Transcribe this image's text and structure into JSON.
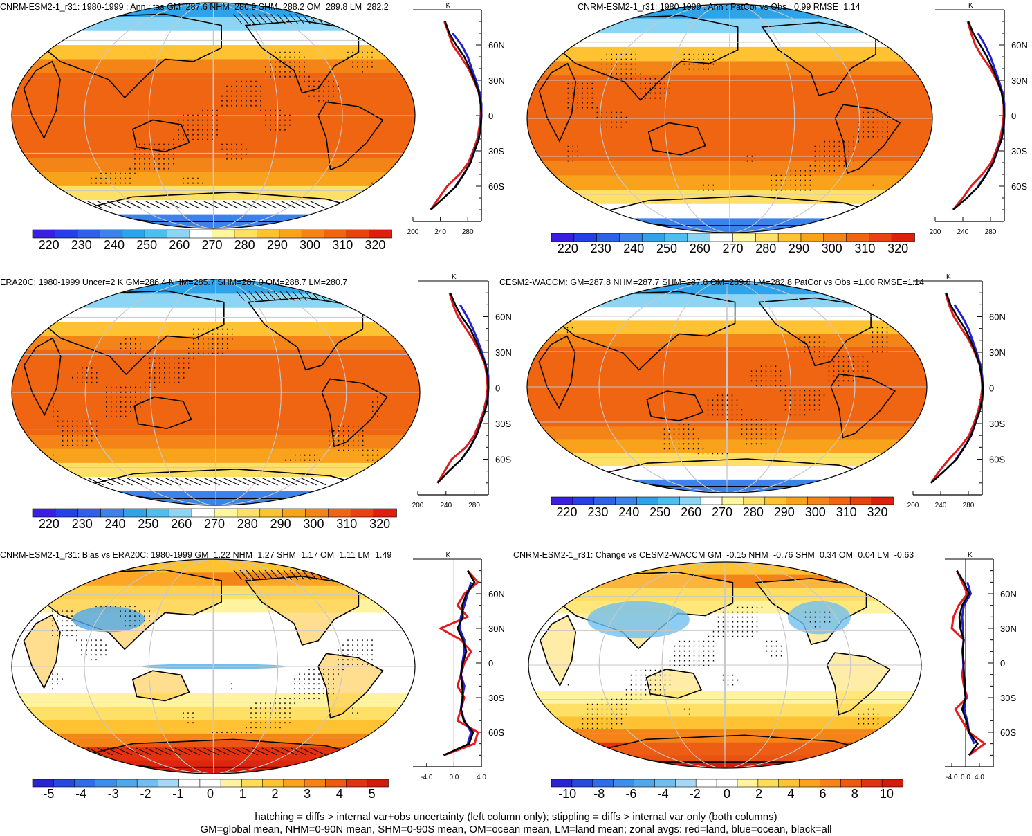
{
  "footer": {
    "line1": "hatching = diffs > internal var+obs uncertainty (left column only); stippling = diffs > internal var only (both columns)",
    "line2": "GM=global mean, NHM=0-90N mean, SHM=0-90S mean, OM=ocean mean, LM=land mean; zonal avgs: red=land, blue=ocean, black=all"
  },
  "chart_data": [
    {
      "type": "heatmap",
      "title": "CNRM-ESM2-1_r31: 1980-1999 : Ann : tas GM=287.6 NHM=286.9 SHM=288.2 OM=289.8 LM=282.2",
      "palette": "temperature",
      "colorbar": {
        "labels": [
          "220",
          "230",
          "240",
          "250",
          "260",
          "270",
          "280",
          "290",
          "300",
          "310",
          "320"
        ],
        "min": 215,
        "max": 325
      },
      "zonal": {
        "unit": "K",
        "xticks": [
          "200",
          "240",
          "280"
        ],
        "xlim": [
          200,
          300
        ],
        "yticks": [
          "60N",
          "30N",
          "0",
          "30S",
          "60S"
        ],
        "lat": [
          -80,
          -70,
          -60,
          -50,
          -40,
          -30,
          -20,
          -10,
          0,
          10,
          20,
          30,
          40,
          50,
          60,
          70,
          80
        ],
        "land": [
          226,
          238,
          250,
          268,
          281,
          288,
          294,
          297,
          299,
          299,
          296,
          289,
          281,
          270,
          258,
          252,
          246
        ],
        "ocean": [
          null,
          null,
          262,
          274,
          284,
          290,
          296,
          299,
          300,
          300,
          297,
          292,
          286,
          280,
          271,
          258,
          null
        ],
        "all": [
          226,
          245,
          263,
          274,
          284,
          290,
          296,
          299,
          300,
          299,
          296,
          290,
          283,
          275,
          263,
          253,
          247
        ]
      }
    },
    {
      "type": "heatmap",
      "title": "CNRM-ESM2-1_r31: 1980-1999 : Ann : PatCor vs Obs =0.99 RMSE=1.14",
      "palette": "temperature",
      "colorbar": {
        "labels": [
          "220",
          "230",
          "240",
          "250",
          "260",
          "270",
          "280",
          "290",
          "300",
          "310",
          "320"
        ],
        "min": 215,
        "max": 325
      },
      "zonal": {
        "unit": "K",
        "xticks": [
          "200",
          "240",
          "280"
        ],
        "xlim": [
          200,
          300
        ],
        "yticks": [
          "60N",
          "30N",
          "0",
          "30S",
          "60S"
        ],
        "lat": [
          -80,
          -70,
          -60,
          -50,
          -40,
          -30,
          -20,
          -10,
          0,
          10,
          20,
          30,
          40,
          50,
          60,
          70,
          80
        ],
        "land": [
          226,
          240,
          252,
          268,
          281,
          288,
          294,
          297,
          299,
          299,
          296,
          289,
          280,
          268,
          258,
          252,
          247
        ],
        "ocean": [
          null,
          null,
          262,
          274,
          284,
          290,
          296,
          299,
          300,
          300,
          297,
          292,
          286,
          280,
          272,
          262,
          null
        ],
        "all": [
          226,
          246,
          263,
          274,
          284,
          290,
          296,
          299,
          300,
          299,
          296,
          290,
          283,
          275,
          265,
          255,
          248
        ]
      }
    },
    {
      "type": "heatmap",
      "title": "ERA20C: 1980-1999 Uncer=2 K GM=286.4 NHM=285.7 SHM=287.0 OM=288.7 LM=280.7",
      "palette": "temperature",
      "colorbar": {
        "labels": [
          "220",
          "230",
          "240",
          "250",
          "260",
          "270",
          "280",
          "290",
          "300",
          "310",
          "320"
        ],
        "min": 215,
        "max": 325
      },
      "zonal": {
        "unit": "K",
        "xticks": [
          "200",
          "240",
          "280"
        ],
        "xlim": [
          200,
          300
        ],
        "yticks": [
          "60N",
          "30N",
          "0",
          "30S",
          "60S"
        ],
        "lat": [
          -80,
          -70,
          -60,
          -50,
          -40,
          -30,
          -20,
          -10,
          0,
          10,
          20,
          30,
          40,
          50,
          60,
          70,
          80
        ],
        "land": [
          228,
          238,
          248,
          268,
          280,
          287,
          293,
          297,
          299,
          298,
          295,
          288,
          279,
          268,
          257,
          250,
          245
        ],
        "ocean": [
          null,
          null,
          262,
          274,
          283,
          289,
          295,
          299,
          300,
          300,
          296,
          291,
          285,
          278,
          270,
          260,
          null
        ],
        "all": [
          228,
          244,
          262,
          274,
          283,
          289,
          295,
          299,
          300,
          299,
          296,
          289,
          282,
          274,
          262,
          253,
          246
        ]
      }
    },
    {
      "type": "heatmap",
      "title": "CESM2-WACCM: GM=287.8 NHM=287.7 SHM=287.8 OM=289.8 LM=282.8 PatCor vs Obs =1.00 RMSE=1.14",
      "palette": "temperature",
      "colorbar": {
        "labels": [
          "220",
          "230",
          "240",
          "250",
          "260",
          "270",
          "280",
          "290",
          "300",
          "310",
          "320"
        ],
        "min": 215,
        "max": 325
      },
      "zonal": {
        "unit": "K",
        "xticks": [
          "200",
          "240",
          "280"
        ],
        "xlim": [
          200,
          300
        ],
        "yticks": [
          "60N",
          "30N",
          "0",
          "30S",
          "60S"
        ],
        "lat": [
          -80,
          -70,
          -60,
          -50,
          -40,
          -30,
          -20,
          -10,
          0,
          10,
          20,
          30,
          40,
          50,
          60,
          70,
          80
        ],
        "land": [
          226,
          238,
          252,
          268,
          281,
          288,
          294,
          298,
          300,
          299,
          296,
          289,
          281,
          270,
          259,
          252,
          247
        ],
        "ocean": [
          null,
          null,
          262,
          274,
          284,
          290,
          296,
          300,
          301,
          300,
          297,
          292,
          286,
          280,
          271,
          260,
          null
        ],
        "all": [
          226,
          245,
          263,
          274,
          284,
          290,
          296,
          300,
          301,
          299,
          296,
          290,
          283,
          275,
          264,
          254,
          248
        ]
      }
    },
    {
      "type": "heatmap",
      "title": "CNRM-ESM2-1_r31: Bias vs ERA20C: 1980-1999 GM=1.22 NHM=1.27 SHM=1.17 OM=1.11 LM=1.49",
      "palette": "difference",
      "colorbar": {
        "labels": [
          "-5",
          "-4",
          "-3",
          "-2",
          "-1",
          "0",
          "1",
          "2",
          "3",
          "4",
          "5"
        ],
        "min": -5.5,
        "max": 5.5
      },
      "zonal": {
        "unit": "K",
        "xticks": [
          "-4.0",
          "0.0",
          "4.0"
        ],
        "xlim": [
          -6,
          4
        ],
        "yticks": [
          "60N",
          "30N",
          "0",
          "30S",
          "60S"
        ],
        "lat": [
          -80,
          -70,
          -60,
          -50,
          -40,
          -30,
          -20,
          -10,
          0,
          10,
          20,
          30,
          40,
          50,
          60,
          70,
          80
        ],
        "land": [
          -1.5,
          3.0,
          3.5,
          0.5,
          1.0,
          1.5,
          0.5,
          1.0,
          1.5,
          2.5,
          1.0,
          -2.0,
          2.0,
          0.5,
          1.5,
          3.5,
          2.0
        ],
        "ocean": [
          null,
          2.0,
          2.5,
          1.5,
          1.0,
          1.2,
          1.5,
          1.0,
          1.2,
          1.5,
          1.5,
          0.8,
          1.0,
          1.5,
          2.0,
          2.5,
          null
        ],
        "all": [
          -1.5,
          2.2,
          2.8,
          1.4,
          1.0,
          1.3,
          1.2,
          1.0,
          1.3,
          1.8,
          1.3,
          0.5,
          1.3,
          1.2,
          1.8,
          3.0,
          2.0
        ]
      }
    },
    {
      "type": "heatmap",
      "title": "CNRM-ESM2-1_r31: Change vs CESM2-WACCM GM=-0.15 NHM=-0.76 SHM=0.34 OM=0.04 LM=-0.63",
      "palette": "difference",
      "colorbar": {
        "labels": [
          "-10",
          "-8",
          "-6",
          "-4",
          "-2",
          "0",
          "2",
          "4",
          "6",
          "8",
          "10"
        ],
        "min": -11,
        "max": 11
      },
      "zonal": {
        "unit": "K",
        "xticks": [
          "-4.0",
          "0.0",
          "4.0"
        ],
        "xlim": [
          -6,
          8
        ],
        "yticks": [
          "60N",
          "30N",
          "0",
          "30S",
          "60S"
        ],
        "lat": [
          -80,
          -70,
          -60,
          -50,
          -40,
          -30,
          -20,
          -10,
          0,
          10,
          20,
          30,
          40,
          50,
          60,
          70,
          80
        ],
        "land": [
          1.0,
          5.5,
          1.0,
          -1.0,
          -3.0,
          0.5,
          -0.5,
          -1.0,
          -0.5,
          -1.0,
          -0.5,
          -4.0,
          -3.5,
          -2.0,
          0.5,
          -1.0,
          -2.5
        ],
        "ocean": [
          null,
          2.5,
          1.0,
          0.5,
          -0.5,
          0.0,
          -0.3,
          -0.5,
          -0.7,
          -0.8,
          -0.6,
          -0.8,
          -1.0,
          -0.5,
          1.5,
          0.5,
          null
        ],
        "all": [
          1.0,
          3.5,
          1.0,
          0.2,
          -1.0,
          0.0,
          -0.3,
          -0.5,
          -0.6,
          -0.8,
          -0.6,
          -1.5,
          -1.8,
          -1.0,
          1.0,
          -0.5,
          -2.5
        ]
      }
    }
  ]
}
